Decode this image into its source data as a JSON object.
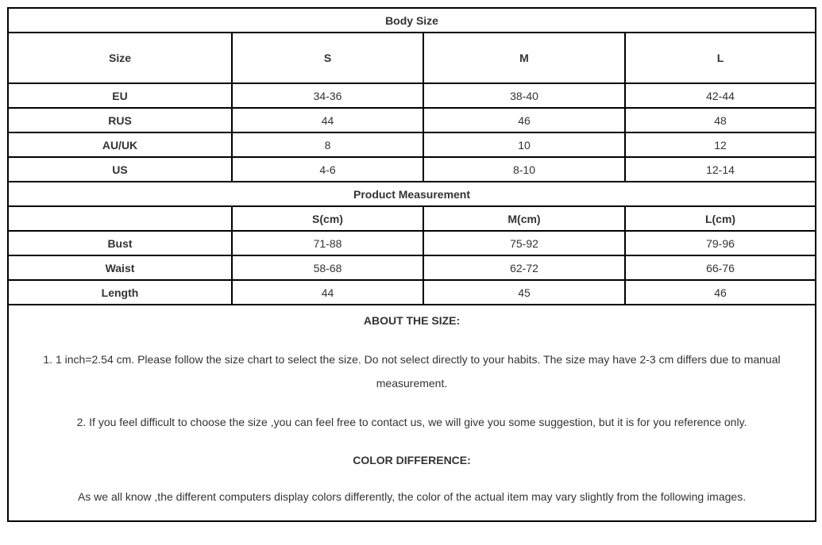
{
  "body_size": {
    "title": "Body Size",
    "headers": [
      "Size",
      "S",
      "M",
      "L"
    ],
    "rows": [
      [
        "EU",
        "34-36",
        "38-40",
        "42-44"
      ],
      [
        "RUS",
        "44",
        "46",
        "48"
      ],
      [
        "AU/UK",
        "8",
        "10",
        "12"
      ],
      [
        "US",
        "4-6",
        "8-10",
        "12-14"
      ]
    ]
  },
  "product_measurement": {
    "title": "Product Measurement",
    "headers": [
      "",
      "S(cm)",
      "M(cm)",
      "L(cm)"
    ],
    "rows": [
      [
        "Bust",
        "71-88",
        "75-92",
        "79-96"
      ],
      [
        "Waist",
        "58-68",
        "62-72",
        "66-76"
      ],
      [
        "Length",
        "44",
        "45",
        "46"
      ]
    ]
  },
  "notes": {
    "about_title": "ABOUT THE SIZE:",
    "about_1": "1. 1 inch=2.54 cm. Please follow the size chart to select the size. Do not select directly to your habits. The size may have 2-3 cm differs due to manual measurement.",
    "about_2": "2. If you feel difficult to choose the size ,you can feel free to contact us, we will give you some suggestion, but it is for you reference only.",
    "color_title": "COLOR DIFFERENCE:",
    "color_text": "As we all know ,the different computers display colors differently, the color of the actual item may vary slightly from the following images."
  }
}
